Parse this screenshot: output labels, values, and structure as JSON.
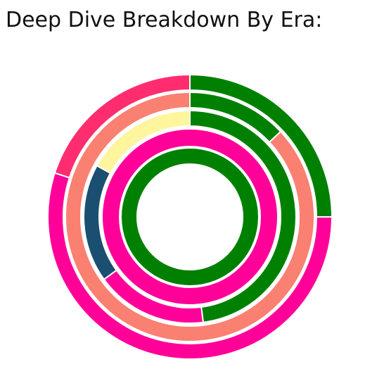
{
  "chart_data": {
    "type": "nested-donut",
    "title": "Deep Dive Breakdown By Era:",
    "rings": [
      {
        "values": [
          25,
          55,
          20
        ],
        "colors": [
          "#008000",
          "#ff0099",
          "#ff2d6f"
        ]
      },
      {
        "values": [
          13,
          87
        ],
        "colors": [
          "#008000",
          "#fa8072"
        ]
      },
      {
        "values": [
          48,
          17,
          18,
          17
        ],
        "colors": [
          "#008000",
          "#ff0099",
          "#1b4f72",
          "#fff59d"
        ]
      },
      {
        "values": [
          100
        ],
        "colors": [
          "#ff0099"
        ]
      },
      {
        "values": [
          100
        ],
        "colors": [
          "#008000"
        ]
      }
    ]
  }
}
